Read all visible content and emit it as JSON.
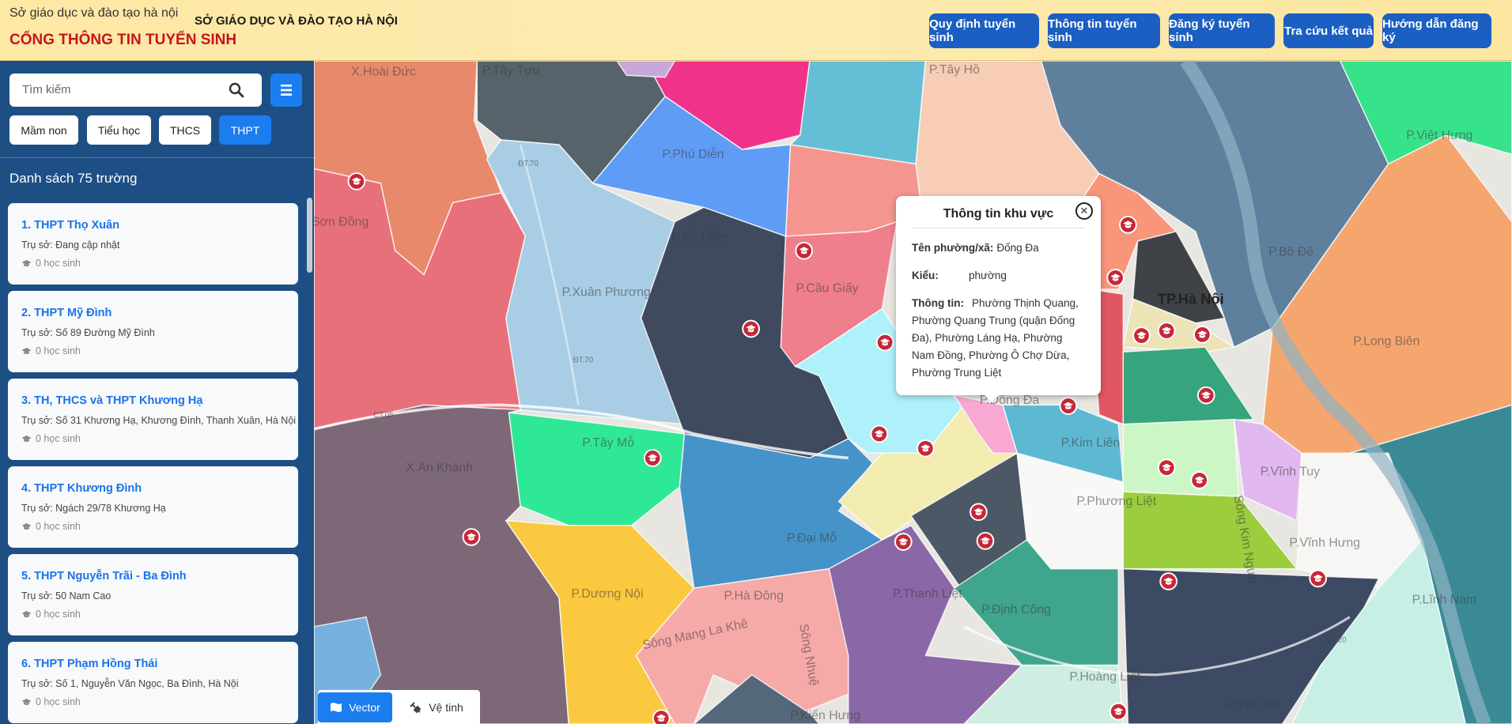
{
  "header": {
    "logo_alt": "Sở giáo dục và đào tạo hà nội",
    "org_name": "SỞ GIÁO DỤC VÀ ĐÀO TẠO HÀ NỘI",
    "portal_title": "CỔNG THÔNG TIN TUYỂN SINH"
  },
  "nav": [
    "Quy định tuyển sinh",
    "Thông tin tuyển sinh",
    "Đăng ký tuyển sinh",
    "Tra cứu kết quả",
    "Hướng dẫn đăng ký"
  ],
  "sidebar": {
    "search_placeholder": "Tìm kiếm",
    "levels": [
      {
        "label": "Mầm non",
        "active": false
      },
      {
        "label": "Tiểu học",
        "active": false
      },
      {
        "label": "THCS",
        "active": false
      },
      {
        "label": "THPT",
        "active": true
      }
    ],
    "list_title": "Danh sách 75 trường",
    "schools": [
      {
        "name": "1. THPT Thọ Xuân",
        "address": "Trụ sở: Đang cập nhật",
        "students": "0 học sinh"
      },
      {
        "name": "2. THPT Mỹ Đình",
        "address": "Trụ sở: Số 89 Đường Mỹ Đình",
        "students": "0 học sinh"
      },
      {
        "name": "3. TH, THCS và THPT Khương Hạ",
        "address": "Trụ sở: Số 31 Khương Hạ, Khương Đình, Thanh Xuân, Hà Nội",
        "students": "0 học sinh"
      },
      {
        "name": "4. THPT Khương Đình",
        "address": "Trụ sở: Ngách 29/78 Khương Hạ",
        "students": "0 học sinh"
      },
      {
        "name": "5. THPT Nguyễn Trãi - Ba Đình",
        "address": "Trụ sở: 50 Nam Cao",
        "students": "0 học sinh"
      },
      {
        "name": "6. THPT Phạm Hồng Thái",
        "address": "Trụ sở: Số 1, Nguyễn Văn Ngọc, Ba Đình, Hà Nội",
        "students": "0 học sinh"
      }
    ]
  },
  "map": {
    "labels": [
      "X.Hoài Đức",
      "P.Tây Tựu",
      "P.Tây Hồ",
      "Sơn Đồng",
      "P.Phú Diễn",
      "P.Từ Liêm",
      "P.Xuân Phương",
      "P.Cầu Giấy",
      "P.Việt Hưng",
      "P.Bồ Đề",
      "TP.Hà Nội",
      "P.Long Biên",
      "P.Đống Đa",
      "P.Kim Liên",
      "P.Tây Mỗ",
      "X.An Khánh",
      "P.Phương Liệt",
      "P.Vĩnh Tuy",
      "P.Vĩnh Hưng",
      "P.Đại Mỗ",
      "P.Dương Nội",
      "P.Hà Đông",
      "P.Thanh Liệt",
      "P.Định Công",
      "P.Lĩnh Nam",
      "P.Hoàng Liệt",
      "P.Yên Sở",
      "P.Kiến Hưng",
      "Sông Mang La Khê",
      "Sông Nhuệ",
      "Sông Kim Ngưu",
      "ĐT.70",
      "ĐT.70",
      "CT.05",
      "CT.20"
    ],
    "popup": {
      "title": "Thông tin khu vực",
      "fields": [
        {
          "label": "Tên phường/xã:",
          "value": "Đống Đa"
        },
        {
          "label": "Kiểu:",
          "value": "phường"
        },
        {
          "label": "Thông tin:",
          "value": "Phường Thịnh Quang, Phường Quang Trung (quận Đống Đa), Phường Láng Hạ, Phường Nam Đồng, Phường Ô Chợ Dừa, Phường Trung Liệt"
        }
      ]
    },
    "modes": [
      "Vector",
      "Vệ tinh"
    ]
  }
}
